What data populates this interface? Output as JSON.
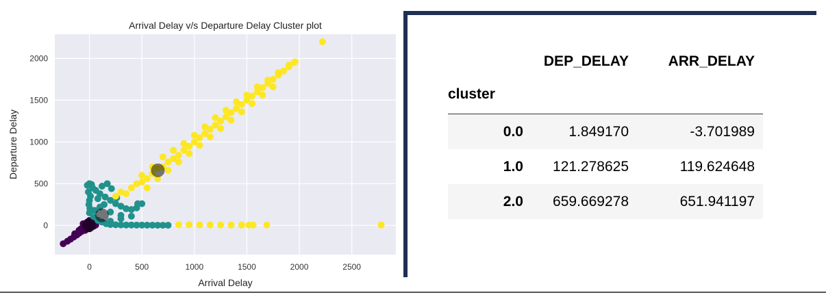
{
  "chart_data": {
    "type": "scatter",
    "title": "Arrival Delay v/s Departure Delay Cluster plot",
    "xlabel": "Arrival Delay",
    "ylabel": "Departure Delay",
    "xlim": [
      -330,
      2920
    ],
    "ylim": [
      -350,
      2290
    ],
    "xticks": [
      0,
      500,
      1000,
      1500,
      2000,
      2500
    ],
    "yticks": [
      0,
      500,
      1000,
      1500,
      2000
    ],
    "grid": true,
    "series": [
      {
        "cluster": 0,
        "color": "#440154",
        "points": [
          [
            -250,
            -220
          ],
          [
            -210,
            -190
          ],
          [
            -180,
            -165
          ],
          [
            -150,
            -140
          ],
          [
            -120,
            -115
          ],
          [
            -95,
            -90
          ],
          [
            -70,
            -70
          ],
          [
            -50,
            -50
          ],
          [
            -30,
            -30
          ],
          [
            -10,
            -10
          ],
          [
            10,
            5
          ],
          [
            30,
            15
          ],
          [
            50,
            25
          ],
          [
            -60,
            20
          ],
          [
            -20,
            40
          ],
          [
            0,
            60
          ],
          [
            20,
            -20
          ],
          [
            40,
            -10
          ],
          [
            60,
            5
          ],
          [
            -100,
            -60
          ],
          [
            -140,
            -100
          ],
          [
            -40,
            -60
          ],
          [
            0,
            -40
          ],
          [
            15,
            30
          ],
          [
            -15,
            10
          ],
          [
            45,
            45
          ],
          [
            -80,
            -40
          ],
          [
            25,
            -5
          ]
        ]
      },
      {
        "cluster": 1,
        "color": "#21918c",
        "points": [
          [
            -20,
            480
          ],
          [
            0,
            500
          ],
          [
            20,
            490
          ],
          [
            -10,
            400
          ],
          [
            10,
            350
          ],
          [
            0,
            300
          ],
          [
            -5,
            250
          ],
          [
            5,
            200
          ],
          [
            0,
            150
          ],
          [
            30,
            450
          ],
          [
            60,
            420
          ],
          [
            100,
            380
          ],
          [
            150,
            340
          ],
          [
            200,
            300
          ],
          [
            250,
            260
          ],
          [
            300,
            230
          ],
          [
            350,
            200
          ],
          [
            400,
            190
          ],
          [
            450,
            210
          ],
          [
            500,
            260
          ],
          [
            120,
            470
          ],
          [
            170,
            500
          ],
          [
            210,
            440
          ],
          [
            260,
            330
          ],
          [
            80,
            320
          ],
          [
            140,
            250
          ],
          [
            200,
            160
          ],
          [
            300,
            120
          ],
          [
            400,
            110
          ],
          [
            460,
            260
          ],
          [
            40,
            100
          ],
          [
            80,
            60
          ],
          [
            120,
            40
          ],
          [
            160,
            20
          ],
          [
            200,
            10
          ],
          [
            250,
            8
          ],
          [
            300,
            6
          ],
          [
            350,
            5
          ],
          [
            400,
            5
          ],
          [
            450,
            4
          ],
          [
            500,
            4
          ],
          [
            550,
            3
          ],
          [
            600,
            3
          ],
          [
            650,
            2
          ],
          [
            700,
            2
          ],
          [
            750,
            2
          ],
          [
            200,
            50
          ],
          [
            300,
            80
          ],
          [
            100,
            220
          ],
          [
            50,
            180
          ]
        ]
      },
      {
        "cluster": 2,
        "color": "#fde725",
        "points": [
          [
            250,
            350
          ],
          [
            300,
            400
          ],
          [
            350,
            380
          ],
          [
            400,
            450
          ],
          [
            450,
            500
          ],
          [
            500,
            520
          ],
          [
            550,
            560
          ],
          [
            600,
            620
          ],
          [
            650,
            680
          ],
          [
            700,
            700
          ],
          [
            750,
            760
          ],
          [
            800,
            800
          ],
          [
            850,
            840
          ],
          [
            900,
            900
          ],
          [
            950,
            950
          ],
          [
            1000,
            1000
          ],
          [
            1050,
            1050
          ],
          [
            1100,
            1100
          ],
          [
            1150,
            1150
          ],
          [
            1200,
            1200
          ],
          [
            1250,
            1250
          ],
          [
            1300,
            1300
          ],
          [
            1350,
            1350
          ],
          [
            1400,
            1400
          ],
          [
            1450,
            1450
          ],
          [
            1500,
            1500
          ],
          [
            1550,
            1550
          ],
          [
            1600,
            1600
          ],
          [
            1650,
            1650
          ],
          [
            1700,
            1700
          ],
          [
            1750,
            1750
          ],
          [
            1800,
            1800
          ],
          [
            1850,
            1850
          ],
          [
            1900,
            1900
          ],
          [
            1950,
            1950
          ],
          [
            2220,
            2200
          ],
          [
            500,
            600
          ],
          [
            600,
            700
          ],
          [
            700,
            820
          ],
          [
            800,
            900
          ],
          [
            900,
            980
          ],
          [
            1000,
            1080
          ],
          [
            1100,
            1180
          ],
          [
            1200,
            1290
          ],
          [
            1300,
            1380
          ],
          [
            1400,
            1480
          ],
          [
            1500,
            1560
          ],
          [
            1600,
            1660
          ],
          [
            1700,
            1740
          ],
          [
            1800,
            1830
          ],
          [
            1900,
            1920
          ],
          [
            1960,
            1960
          ],
          [
            550,
            450
          ],
          [
            650,
            560
          ],
          [
            750,
            660
          ],
          [
            850,
            760
          ],
          [
            950,
            860
          ],
          [
            1050,
            960
          ],
          [
            1150,
            1060
          ],
          [
            1250,
            1160
          ],
          [
            1350,
            1260
          ],
          [
            1450,
            1360
          ],
          [
            1550,
            1460
          ],
          [
            1650,
            1560
          ],
          [
            1750,
            1660
          ],
          [
            850,
            8
          ],
          [
            950,
            8
          ],
          [
            1050,
            6
          ],
          [
            1150,
            6
          ],
          [
            1250,
            5
          ],
          [
            1350,
            5
          ],
          [
            1450,
            5
          ],
          [
            1520,
            5
          ],
          [
            1560,
            5
          ],
          [
            1690,
            5
          ],
          [
            2780,
            5
          ]
        ]
      }
    ],
    "centroids": [
      {
        "cluster": 0,
        "x": -3.701989,
        "y": 1.84917
      },
      {
        "cluster": 1,
        "x": 119.624648,
        "y": 121.278625
      },
      {
        "cluster": 2,
        "x": 651.941197,
        "y": 659.669278
      }
    ],
    "table": {
      "columns": [
        "DEP_DELAY",
        "ARR_DELAY"
      ],
      "index_name": "cluster",
      "rows": [
        {
          "index": "0.0",
          "DEP_DELAY": "1.849170",
          "ARR_DELAY": "-3.701989"
        },
        {
          "index": "1.0",
          "DEP_DELAY": "121.278625",
          "ARR_DELAY": "119.624648"
        },
        {
          "index": "2.0",
          "DEP_DELAY": "659.669278",
          "ARR_DELAY": "651.941197"
        }
      ]
    }
  }
}
